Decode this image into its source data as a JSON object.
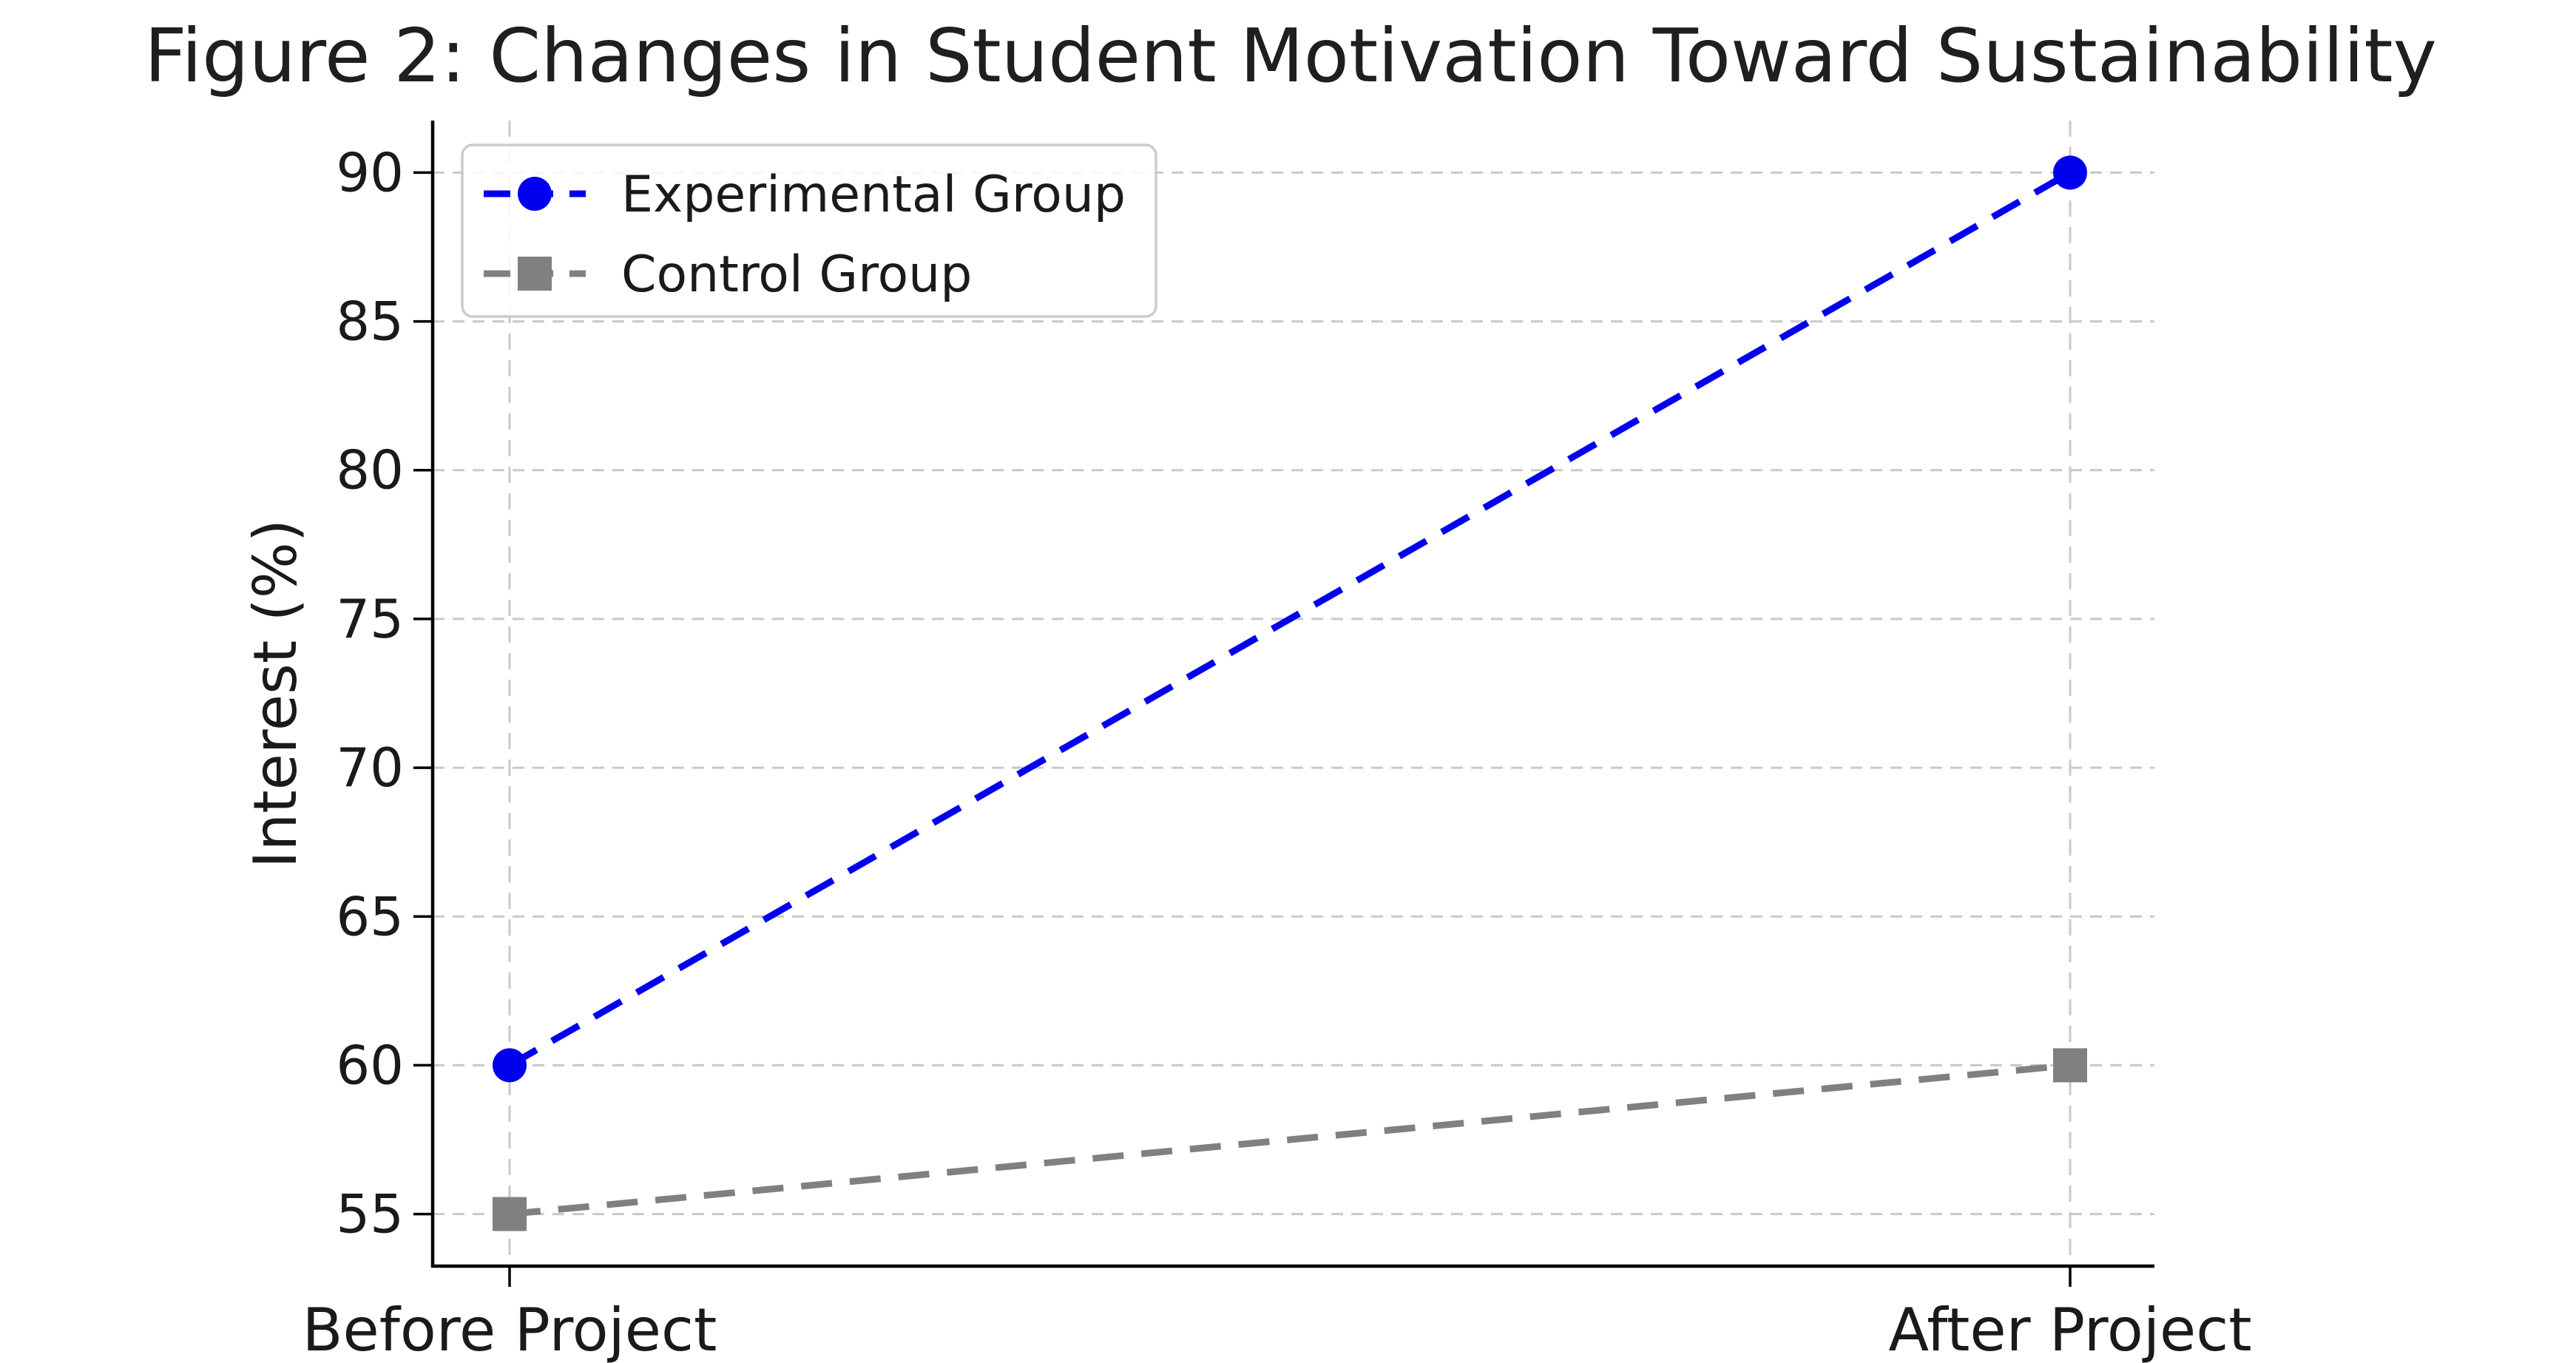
{
  "chart_data": {
    "type": "line",
    "title": "Figure 2: Changes in Student Motivation Toward Sustainability",
    "categories": [
      "Before Project",
      "After Project"
    ],
    "series": [
      {
        "name": "Experimental Group",
        "values": [
          60,
          90
        ],
        "color": "#0000ee",
        "marker": "circle",
        "line_style": "dashed"
      },
      {
        "name": "Control Group",
        "values": [
          55,
          60
        ],
        "color": "#808080",
        "marker": "square",
        "line_style": "dashed"
      }
    ],
    "xlabel": "",
    "ylabel": "Interest (%)",
    "yticks": [
      55,
      60,
      65,
      70,
      75,
      80,
      85,
      90
    ],
    "ylim": [
      53.25,
      91.75
    ],
    "grid": true,
    "grid_style": "dashed",
    "legend_position": "upper-left",
    "colors": {
      "text": "#1a1a1a",
      "grid": "#c9c9c9",
      "spine": "#000000",
      "background": "#ffffff",
      "legend_border": "#cccccc"
    }
  }
}
